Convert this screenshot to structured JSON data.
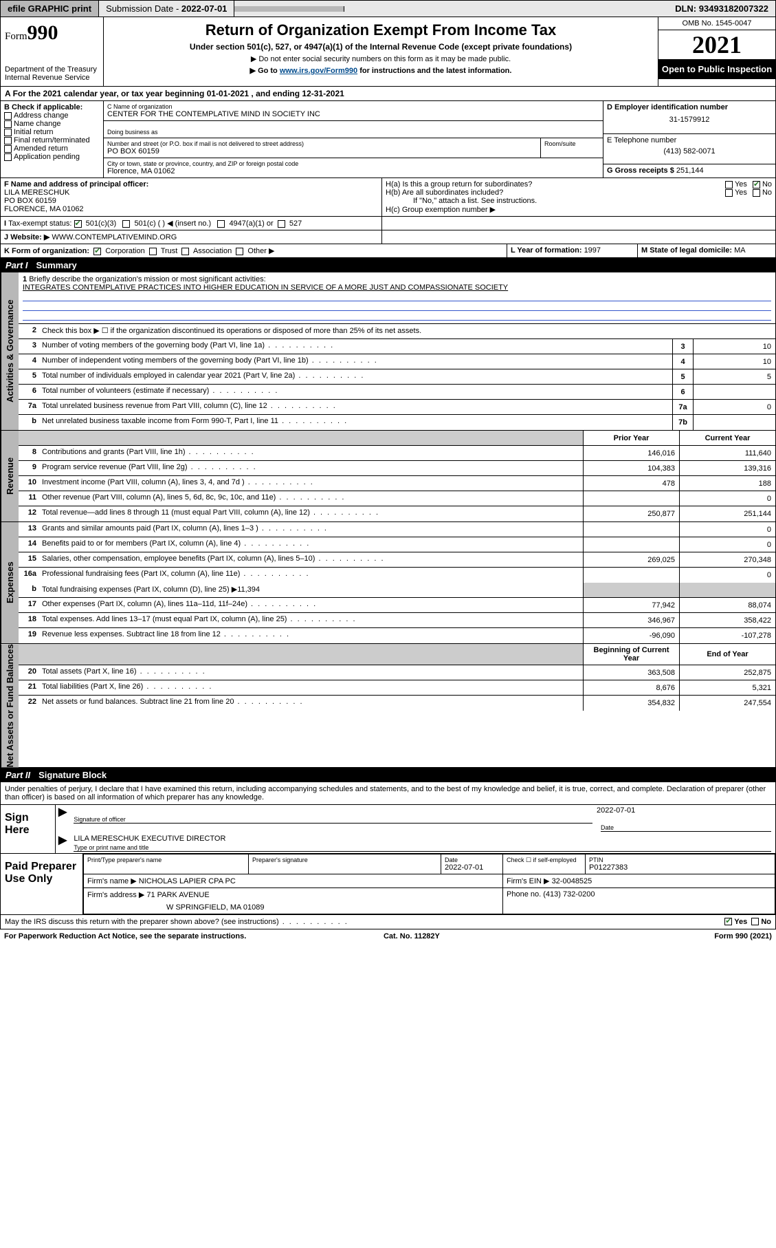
{
  "topbar": {
    "efile": "efile GRAPHIC print",
    "submission_label": "Submission Date - ",
    "submission_date": "2022-07-01",
    "dln_label": "DLN: ",
    "dln": "93493182007322"
  },
  "header": {
    "form_word": "Form",
    "form_num": "990",
    "dept": "Department of the Treasury",
    "irs": "Internal Revenue Service",
    "title": "Return of Organization Exempt From Income Tax",
    "sub1": "Under section 501(c), 527, or 4947(a)(1) of the Internal Revenue Code (except private foundations)",
    "sub2": "▶ Do not enter social security numbers on this form as it may be made public.",
    "sub3_pre": "▶ Go to ",
    "sub3_link": "www.irs.gov/Form990",
    "sub3_post": " for instructions and the latest information.",
    "omb": "OMB No. 1545-0047",
    "year": "2021",
    "open": "Open to Public Inspection"
  },
  "period": {
    "text_a": "For the 2021 calendar year, or tax year beginning ",
    "begin": "01-01-2021",
    "text_b": " , and ending ",
    "end": "12-31-2021"
  },
  "sectionB": {
    "label": "B Check if applicable:",
    "opts": [
      "Address change",
      "Name change",
      "Initial return",
      "Final return/terminated",
      "Amended return",
      "Application pending"
    ]
  },
  "sectionC": {
    "name_lbl": "C Name of organization",
    "name": "CENTER FOR THE CONTEMPLATIVE MIND IN SOCIETY INC",
    "dba_lbl": "Doing business as",
    "addr_lbl": "Number and street (or P.O. box if mail is not delivered to street address)",
    "room_lbl": "Room/suite",
    "addr": "PO BOX 60159",
    "city_lbl": "City or town, state or province, country, and ZIP or foreign postal code",
    "city": "Florence, MA  01062"
  },
  "sectionD": {
    "lbl": "D Employer identification number",
    "val": "31-1579912"
  },
  "sectionE": {
    "lbl": "E Telephone number",
    "val": "(413) 582-0071"
  },
  "sectionG": {
    "lbl": "G Gross receipts $ ",
    "val": "251,144"
  },
  "sectionF": {
    "lbl": "F Name and address of principal officer:",
    "name": "LILA MERESCHUK",
    "addr1": "PO BOX 60159",
    "addr2": "FLORENCE, MA  01062"
  },
  "sectionH": {
    "a_lbl": "H(a)  Is this a group return for subordinates?",
    "a_yes": "Yes",
    "a_no": "No",
    "b_lbl": "H(b)  Are all subordinates included?",
    "b_note": "If \"No,\" attach a list. See instructions.",
    "c_lbl": "H(c)  Group exemption number ▶"
  },
  "sectionI": {
    "lbl": "Tax-exempt status:",
    "o1": "501(c)(3)",
    "o2": "501(c) (  ) ◀ (insert no.)",
    "o3": "4947(a)(1) or",
    "o4": "527"
  },
  "sectionJ": {
    "lbl": "Website: ▶",
    "val": "WWW.CONTEMPLATIVEMIND.ORG"
  },
  "sectionK": {
    "lbl": "K Form of organization:",
    "o1": "Corporation",
    "o2": "Trust",
    "o3": "Association",
    "o4": "Other ▶"
  },
  "sectionL": {
    "lbl": "L Year of formation: ",
    "val": "1997"
  },
  "sectionM": {
    "lbl": "M State of legal domicile: ",
    "val": "MA"
  },
  "part1": {
    "num": "Part I",
    "title": "Summary",
    "l1_lbl": "Briefly describe the organization's mission or most significant activities:",
    "l1_val": "INTEGRATES CONTEMPLATIVE PRACTICES INTO HIGHER EDUCATION IN SERVICE OF A MORE JUST AND COMPASSIONATE SOCIETY",
    "l2": "Check this box ▶ ☐  if the organization discontinued its operations or disposed of more than 25% of its net assets.",
    "hdr_prior": "Prior Year",
    "hdr_curr": "Current Year",
    "hdr_begin": "Beginning of Current Year",
    "hdr_end": "End of Year",
    "tab_gov": "Activities & Governance",
    "tab_rev": "Revenue",
    "tab_exp": "Expenses",
    "tab_net": "Net Assets or Fund Balances",
    "rows_single": [
      {
        "n": "3",
        "t": "Number of voting members of the governing body (Part VI, line 1a)",
        "r": "3",
        "v": "10"
      },
      {
        "n": "4",
        "t": "Number of independent voting members of the governing body (Part VI, line 1b)",
        "r": "4",
        "v": "10"
      },
      {
        "n": "5",
        "t": "Total number of individuals employed in calendar year 2021 (Part V, line 2a)",
        "r": "5",
        "v": "5"
      },
      {
        "n": "6",
        "t": "Total number of volunteers (estimate if necessary)",
        "r": "6",
        "v": ""
      },
      {
        "n": "7a",
        "t": "Total unrelated business revenue from Part VIII, column (C), line 12",
        "r": "7a",
        "v": "0"
      },
      {
        "n": "b",
        "t": "Net unrelated business taxable income from Form 990-T, Part I, line 11",
        "r": "7b",
        "v": ""
      }
    ],
    "rows_rev": [
      {
        "n": "8",
        "t": "Contributions and grants (Part VIII, line 1h)",
        "a": "146,016",
        "b": "111,640"
      },
      {
        "n": "9",
        "t": "Program service revenue (Part VIII, line 2g)",
        "a": "104,383",
        "b": "139,316"
      },
      {
        "n": "10",
        "t": "Investment income (Part VIII, column (A), lines 3, 4, and 7d )",
        "a": "478",
        "b": "188"
      },
      {
        "n": "11",
        "t": "Other revenue (Part VIII, column (A), lines 5, 6d, 8c, 9c, 10c, and 11e)",
        "a": "",
        "b": "0"
      },
      {
        "n": "12",
        "t": "Total revenue—add lines 8 through 11 (must equal Part VIII, column (A), line 12)",
        "a": "250,877",
        "b": "251,144"
      }
    ],
    "rows_exp": [
      {
        "n": "13",
        "t": "Grants and similar amounts paid (Part IX, column (A), lines 1–3 )",
        "a": "",
        "b": "0"
      },
      {
        "n": "14",
        "t": "Benefits paid to or for members (Part IX, column (A), line 4)",
        "a": "",
        "b": "0"
      },
      {
        "n": "15",
        "t": "Salaries, other compensation, employee benefits (Part IX, column (A), lines 5–10)",
        "a": "269,025",
        "b": "270,348"
      },
      {
        "n": "16a",
        "t": "Professional fundraising fees (Part IX, column (A), line 11e)",
        "a": "",
        "b": "0"
      }
    ],
    "row_16b": {
      "n": "b",
      "t_pre": "Total fundraising expenses (Part IX, column (D), line 25) ▶",
      "t_val": "11,394"
    },
    "rows_exp2": [
      {
        "n": "17",
        "t": "Other expenses (Part IX, column (A), lines 11a–11d, 11f–24e)",
        "a": "77,942",
        "b": "88,074"
      },
      {
        "n": "18",
        "t": "Total expenses. Add lines 13–17 (must equal Part IX, column (A), line 25)",
        "a": "346,967",
        "b": "358,422"
      },
      {
        "n": "19",
        "t": "Revenue less expenses. Subtract line 18 from line 12",
        "a": "-96,090",
        "b": "-107,278"
      }
    ],
    "rows_net": [
      {
        "n": "20",
        "t": "Total assets (Part X, line 16)",
        "a": "363,508",
        "b": "252,875"
      },
      {
        "n": "21",
        "t": "Total liabilities (Part X, line 26)",
        "a": "8,676",
        "b": "5,321"
      },
      {
        "n": "22",
        "t": "Net assets or fund balances. Subtract line 21 from line 20",
        "a": "354,832",
        "b": "247,554"
      }
    ]
  },
  "part2": {
    "num": "Part II",
    "title": "Signature Block",
    "decl": "Under penalties of perjury, I declare that I have examined this return, including accompanying schedules and statements, and to the best of my knowledge and belief, it is true, correct, and complete. Declaration of preparer (other than officer) is based on all information of which preparer has any knowledge.",
    "sign_here": "Sign Here",
    "sig_officer": "Signature of officer",
    "date_lbl": "Date",
    "sig_date": "2022-07-01",
    "officer_name": "LILA MERESCHUK  EXECUTIVE DIRECTOR",
    "type_name": "Type or print name and title",
    "paid_lbl": "Paid Preparer Use Only",
    "prep_name_lbl": "Print/Type preparer's name",
    "prep_sig_lbl": "Preparer's signature",
    "prep_date_lbl": "Date",
    "prep_date": "2022-07-01",
    "self_emp": "Check ☐ if self-employed",
    "ptin_lbl": "PTIN",
    "ptin": "P01227383",
    "firm_name_lbl": "Firm's name      ▶",
    "firm_name": "NICHOLAS LAPIER CPA PC",
    "firm_ein_lbl": "Firm's EIN ▶",
    "firm_ein": "32-0048525",
    "firm_addr_lbl": "Firm's address ▶",
    "firm_addr1": "71 PARK AVENUE",
    "firm_addr2": "W SPRINGFIELD, MA  01089",
    "phone_lbl": "Phone no. ",
    "phone": "(413) 732-0200",
    "discuss": "May the IRS discuss this return with the preparer shown above? (see instructions)",
    "yes": "Yes",
    "no": "No"
  },
  "footer": {
    "pra": "For Paperwork Reduction Act Notice, see the separate instructions.",
    "cat": "Cat. No. 11282Y",
    "form": "Form 990 (2021)"
  }
}
